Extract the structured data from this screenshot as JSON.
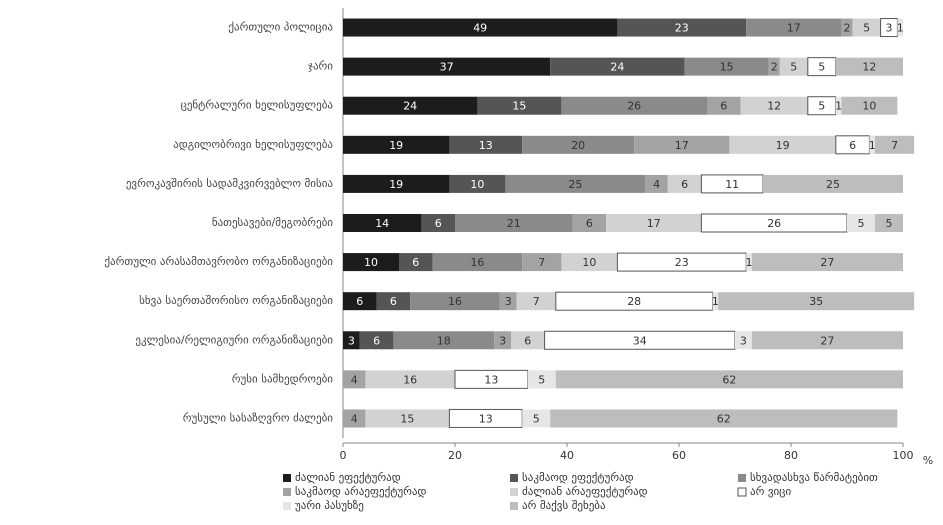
{
  "chart_data": {
    "type": "stacked-bar-horizontal",
    "categories": [
      "ქართული პოლიცია",
      "ჯარი",
      "ცენტრალური ხელისუფლება",
      "ადგილობრივი ხელისუფლება",
      "ევროკავშირის სადამკვირვებლო მისია",
      "ნათესავები/მეგობრები",
      "ქართული არასამთავრობო ორგანიზაციები",
      "სხვა საერთაშორისო ორგანიზაციები",
      "ეკლესია/რელიგიური ორგანიზაციები",
      "რუსი სამხედროები",
      "რუსული სასაზღვრო ძალები"
    ],
    "series": [
      {
        "name": "ძალიან ეფექტურად",
        "color": "#1c1c1c",
        "values": [
          49,
          37,
          24,
          19,
          19,
          14,
          10,
          6,
          3,
          null,
          null
        ]
      },
      {
        "name": "საკმაოდ ეფექტურად",
        "color": "#555555",
        "values": [
          23,
          24,
          15,
          13,
          10,
          6,
          6,
          6,
          6,
          null,
          null
        ]
      },
      {
        "name": "სხვადასხვა წარმატებით",
        "color": "#8a8a8a",
        "values": [
          17,
          15,
          26,
          20,
          25,
          21,
          16,
          16,
          18,
          null,
          null
        ]
      },
      {
        "name": "საკმაოდ არაეფექტურად",
        "color": "#a3a3a3",
        "values": [
          2,
          2,
          6,
          17,
          4,
          6,
          7,
          3,
          3,
          4,
          4
        ]
      },
      {
        "name": "ძალიან არაეფექტურად",
        "color": "#d2d2d2",
        "values": [
          5,
          5,
          12,
          19,
          6,
          17,
          10,
          7,
          6,
          16,
          15
        ]
      },
      {
        "name": "არ ვიცი",
        "color": "#ffffff",
        "values": [
          3,
          5,
          5,
          6,
          11,
          26,
          23,
          28,
          34,
          13,
          13
        ]
      },
      {
        "name": "უარი პასუხზე",
        "color": "#e6e6e6",
        "values": [
          1,
          null,
          1,
          1,
          null,
          5,
          1,
          1,
          3,
          5,
          5
        ]
      },
      {
        "name": "არ მაქვს შეხება",
        "color": "#bdbdbd",
        "values": [
          null,
          12,
          10,
          7,
          25,
          5,
          27,
          35,
          27,
          62,
          62
        ]
      }
    ],
    "xlim": [
      0,
      100
    ],
    "xticks": [
      0,
      20,
      40,
      60,
      80,
      100
    ],
    "xlabel": "%"
  }
}
